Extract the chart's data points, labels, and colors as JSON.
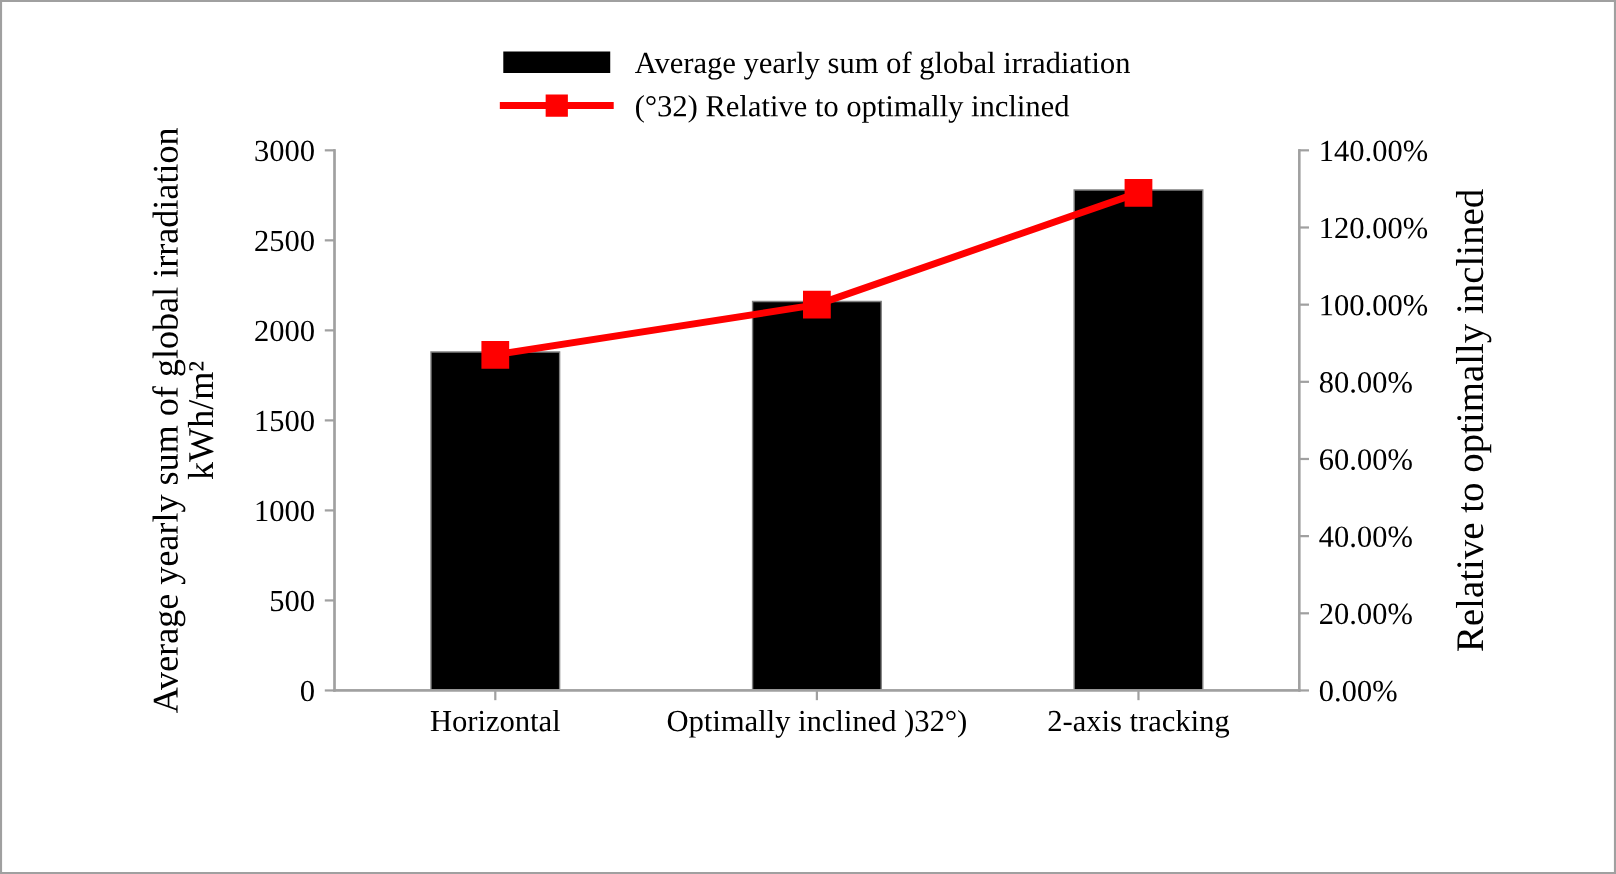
{
  "chart_data": {
    "type": "bar",
    "categories": [
      "Horizontal",
      "Optimally inclined )32°)",
      "2-axis tracking"
    ],
    "ylabel": "Average yearly sum of global irradiation\nkWh/m²",
    "y2label": "Relative to optimally inclined",
    "series": [
      {
        "name": "Average yearly sum of global irradiation",
        "color": "#000000",
        "values": [
          1880,
          2160,
          2780
        ]
      },
      {
        "name": "(°32) Relative to optimally inclined",
        "type": "line",
        "axis": "y2",
        "color": "#ff0000",
        "marker": "square",
        "values": [
          87,
          100,
          129
        ]
      }
    ],
    "ylim": [
      0,
      3000
    ],
    "yticks": [
      0,
      500,
      1000,
      1500,
      2000,
      2500,
      3000
    ],
    "y2lim": [
      0,
      140
    ],
    "y2ticks": [
      {
        "value": 0,
        "label": "0.00%"
      },
      {
        "value": 20,
        "label": "20.00%"
      },
      {
        "value": 40,
        "label": "40.00%"
      },
      {
        "value": 60,
        "label": "60.00%"
      },
      {
        "value": 80,
        "label": "80.00%"
      },
      {
        "value": 100,
        "label": "100.00%"
      },
      {
        "value": 120,
        "label": "120.00%"
      },
      {
        "value": 140,
        "label": "140.00%"
      }
    ],
    "grid": false,
    "legend": "top"
  }
}
